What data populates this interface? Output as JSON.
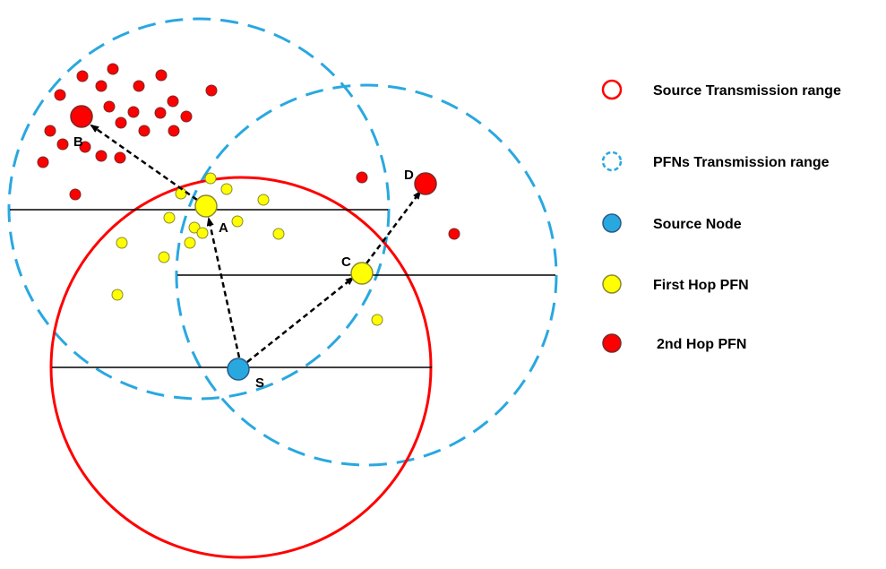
{
  "colors": {
    "source_range": "#ff0000",
    "pfn_range": "#29a8e0",
    "source_node": "#29a8e0",
    "first_hop": "#ffff00",
    "second_hop": "#ff0000",
    "lines": "#000000"
  },
  "nodes": {
    "S": "S",
    "A": "A",
    "B": "B",
    "C": "C",
    "D": "D"
  },
  "legend": {
    "source_range": "Source Transmission range",
    "pfn_range": "PFNs Transmission range",
    "source_node": "Source Node",
    "first_hop": "First Hop PFN",
    "second_hop": "2nd Hop PFN"
  }
}
